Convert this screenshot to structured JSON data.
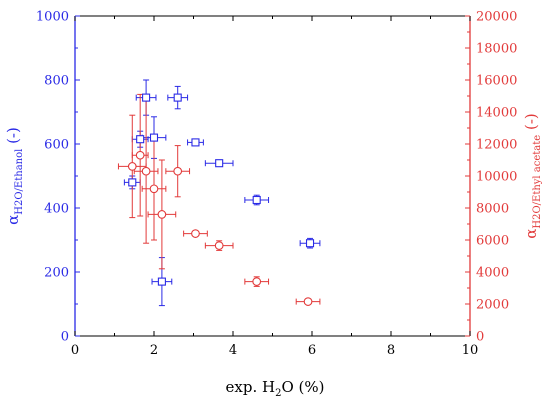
{
  "chart_data": {
    "type": "scatter",
    "xlabel_prefix": "exp. H",
    "xlabel_sub": "2",
    "xlabel_suffix": "O (%)",
    "ylabel_left_main": "α",
    "ylabel_left_sub": "H2O/Ethanol",
    "ylabel_left_suffix": " (-)",
    "ylabel_right_main": "α",
    "ylabel_right_sub": "H2O/Ethyl acetate",
    "ylabel_right_suffix": " (-)",
    "xlim": [
      0,
      10
    ],
    "ylim_left": [
      0,
      1000
    ],
    "ylim_right": [
      0,
      20000
    ],
    "x_ticks": [
      "0",
      "2",
      "4",
      "6",
      "8",
      "10"
    ],
    "y_ticks_left": [
      "0",
      "200",
      "400",
      "600",
      "800",
      "1000"
    ],
    "y_ticks_right": [
      "0",
      "2000",
      "4000",
      "6000",
      "8000",
      "10000",
      "12000",
      "14000",
      "16000",
      "18000",
      "20000"
    ],
    "colors": {
      "left": "#2a2ae6",
      "right": "#e23a3a",
      "axis": "#000000"
    },
    "series": [
      {
        "axis": "left",
        "marker": "square",
        "points": [
          {
            "x": 1.45,
            "y": 480,
            "xerr": 0.2,
            "yerr": 20
          },
          {
            "x": 1.65,
            "y": 615,
            "xerr": 0.2,
            "yerr": 25
          },
          {
            "x": 1.8,
            "y": 745,
            "xerr": 0.25,
            "yerr": 55
          },
          {
            "x": 2.0,
            "y": 620,
            "xerr": 0.3,
            "yerr": 65
          },
          {
            "x": 2.2,
            "y": 170,
            "xerr": 0.25,
            "yerr": 75
          },
          {
            "x": 2.6,
            "y": 745,
            "xerr": 0.25,
            "yerr": 35
          },
          {
            "x": 3.05,
            "y": 605,
            "xerr": 0.2,
            "yerr": 8
          },
          {
            "x": 3.65,
            "y": 540,
            "xerr": 0.35,
            "yerr": 8
          },
          {
            "x": 4.6,
            "y": 425,
            "xerr": 0.3,
            "yerr": 15
          },
          {
            "x": 5.95,
            "y": 290,
            "xerr": 0.25,
            "yerr": 15
          }
        ]
      },
      {
        "axis": "right",
        "marker": "circle",
        "points": [
          {
            "x": 1.45,
            "y": 10600,
            "xerr": 0.35,
            "yerr": 3200
          },
          {
            "x": 1.65,
            "y": 11300,
            "xerr": 0.2,
            "yerr": 3800
          },
          {
            "x": 1.8,
            "y": 10300,
            "xerr": 0.3,
            "yerr": 4500
          },
          {
            "x": 2.0,
            "y": 9200,
            "xerr": 0.3,
            "yerr": 3200
          },
          {
            "x": 2.2,
            "y": 7600,
            "xerr": 0.35,
            "yerr": 3400
          },
          {
            "x": 2.6,
            "y": 10300,
            "xerr": 0.3,
            "yerr": 1600
          },
          {
            "x": 3.05,
            "y": 6400,
            "xerr": 0.3,
            "yerr": 150
          },
          {
            "x": 3.65,
            "y": 5650,
            "xerr": 0.35,
            "yerr": 300
          },
          {
            "x": 4.6,
            "y": 3400,
            "xerr": 0.3,
            "yerr": 300
          },
          {
            "x": 5.9,
            "y": 2150,
            "xerr": 0.3,
            "yerr": 150
          }
        ]
      }
    ]
  }
}
